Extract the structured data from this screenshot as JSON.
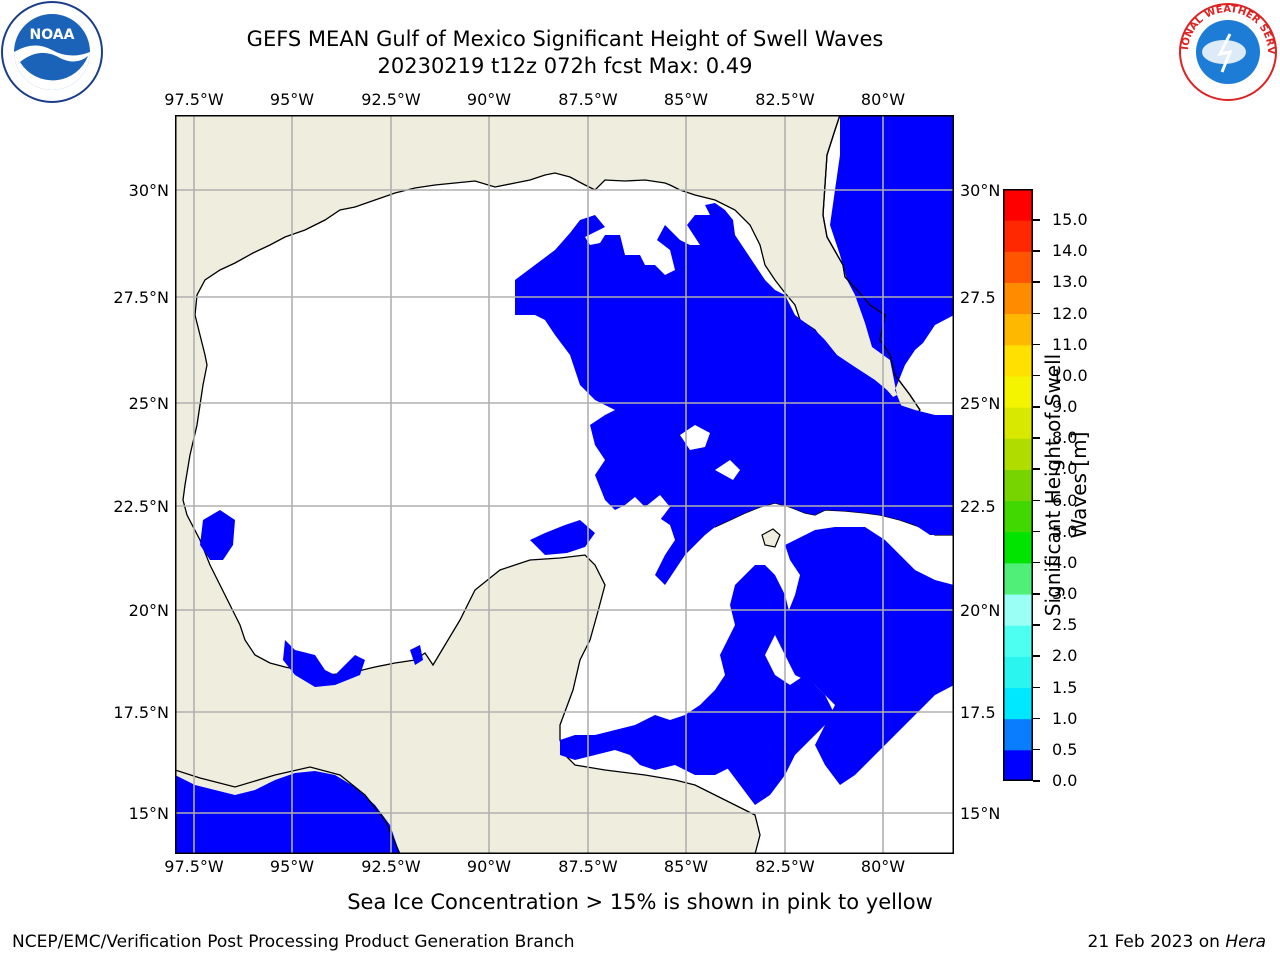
{
  "title": {
    "line1": "GEFS MEAN Gulf of Mexico Significant Height of Swell Waves",
    "line2": "20230219 t12z 072h fcst   Max: 0.49"
  },
  "logos": {
    "left": "NOAA",
    "right": "NATIONAL WEATHER SERVICE"
  },
  "map": {
    "lon_ticks_top": [
      "97.5°W",
      "95°W",
      "92.5°W",
      "90°W",
      "87.5°W",
      "85°W",
      "82.5°W",
      "80°W"
    ],
    "lon_ticks_bottom": [
      "97.5°W",
      "95°W",
      "92.5°W",
      "90°W",
      "87.5°W",
      "85°W",
      "82.5°W",
      "80°W"
    ],
    "lat_ticks_left": [
      "30°N",
      "27.5°N",
      "25°N",
      "22.5°N",
      "20°N",
      "17.5°N",
      "15°N"
    ],
    "lat_ticks_right": [
      "30°N",
      "27.5",
      "25°N",
      "22.5",
      "20°N",
      "17.5",
      "15°N"
    ],
    "colors": {
      "land": "#efedde",
      "swell": "#0000ff",
      "water": "#ffffff",
      "grid": "#b0b0b0"
    }
  },
  "colorbar": {
    "label": "Significant Height of Swell Waves [m]",
    "ticks": [
      "0.0",
      "0.5",
      "1.0",
      "1.5",
      "2.0",
      "2.5",
      "3.0",
      "4.0",
      "5.0",
      "6.0",
      "7.0",
      "8.0",
      "9.0",
      "10.0",
      "11.0",
      "12.0",
      "13.0",
      "14.0",
      "15.0"
    ],
    "colors": [
      "#0000ff",
      "#0a7dff",
      "#00e8ff",
      "#2af5ef",
      "#4dfff0",
      "#9afff4",
      "#50f078",
      "#00e400",
      "#40d800",
      "#78d400",
      "#b0dc00",
      "#d8e800",
      "#f4f400",
      "#ffe000",
      "#ffb800",
      "#ff8c00",
      "#ff5500",
      "#ff2800",
      "#ff0000"
    ]
  },
  "note": "Sea Ice Concentration > 15% is shown in pink to yellow",
  "footer": {
    "left": "NCEP/EMC/Verification Post Processing Product Generation Branch",
    "right_date": "21 Feb 2023 on ",
    "right_host": "Hera"
  }
}
